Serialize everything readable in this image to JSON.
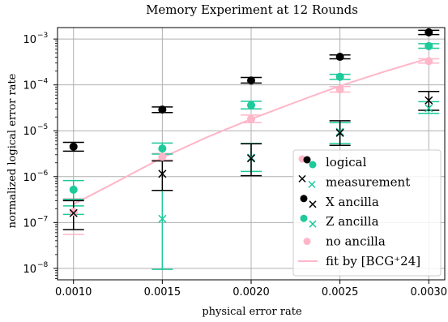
{
  "chart_data": {
    "type": "scatter",
    "title": "Memory Experiment at 12 Rounds",
    "xlabel": "physical error rate",
    "ylabel": "normalized logical error rate",
    "xlim": [
      0.00091,
      0.00309
    ],
    "ylim_log10": [
      -8.25,
      -2.75
    ],
    "yscale": "log",
    "grid": true,
    "legend_position": "lower-right",
    "x_ticks": [
      0.001,
      0.0015,
      0.002,
      0.0025,
      0.003
    ],
    "x_tick_labels": [
      "0.0010",
      "0.0015",
      "0.0020",
      "0.0025",
      "0.0030"
    ],
    "y_ticks_exp": [
      -8,
      -7,
      -6,
      -5,
      -4,
      -3
    ],
    "y_tick_labels": [
      "10",
      "10",
      "10",
      "10",
      "10",
      "10"
    ],
    "y_tick_exponents": [
      "−8",
      "−7",
      "−6",
      "−5",
      "−4",
      "−3"
    ],
    "colors": {
      "X ancilla": "#000000",
      "Z ancilla": "#1ec99a",
      "no ancilla": "#ffb6c8",
      "fit": "#ffb6c8",
      "grid": "#b0b0b0"
    },
    "series": [
      {
        "name": "X ancilla",
        "x": [
          0.001,
          0.0015,
          0.002,
          0.0025,
          0.003
        ],
        "logical": [
          4.5e-06,
          2.9e-05,
          0.000125,
          0.00041,
          0.0014
        ],
        "logical_err": [
          [
            3.6e-06,
            5.6e-06
          ],
          [
            2.5e-05,
            3.3e-05
          ],
          [
            0.00011,
            0.000145
          ],
          [
            0.00037,
            0.00045
          ],
          [
            0.00125,
            0.00155
          ]
        ],
        "measurement": [
          1.6e-07,
          1.15e-06,
          2.5e-06,
          9e-06,
          4.6e-05
        ],
        "measurement_err": [
          [
            7e-08,
            3e-07
          ],
          [
            5e-07,
            2.2e-06
          ],
          [
            1.05e-06,
            5.2e-06
          ],
          [
            4.8e-06,
            1.65e-05
          ],
          [
            2.8e-05,
            7.2e-05
          ]
        ]
      },
      {
        "name": "Z ancilla",
        "x": [
          0.001,
          0.0015,
          0.002,
          0.0025,
          0.003
        ],
        "logical": [
          5.2e-07,
          4.1e-06,
          3.6e-05,
          0.00015,
          0.0007
        ],
        "logical_err": [
          [
            3.2e-07,
            8.2e-07
          ],
          [
            3.1e-06,
            5.4e-06
          ],
          [
            3e-05,
            4.4e-05
          ],
          [
            0.000132,
            0.00017
          ],
          [
            0.00063,
            0.00079
          ]
        ],
        "measurement": [
          null,
          1.2e-07,
          2.6e-06,
          9.5e-06,
          3.1e-05
        ],
        "measurement_err": [
          [
            1.5e-07,
            2.3e-07
          ],
          [
            9.5e-09,
            5e-07
          ],
          [
            1.3e-06,
            5.3e-06
          ],
          [
            5.3e-06,
            1.5e-05
          ],
          [
            2.4e-05,
            4.3e-05
          ]
        ]
      },
      {
        "name": "no ancilla",
        "x": [
          0.001,
          0.0015,
          0.002,
          0.0025,
          0.003
        ],
        "logical": [
          1.7e-07,
          2.7e-06,
          1.8e-05,
          8e-05,
          0.00033
        ],
        "logical_err": [
          [
            5.5e-08,
            3.3e-07
          ],
          [
            2.3e-06,
            3.2e-06
          ],
          [
            1.5e-05,
            2.2e-05
          ],
          [
            7e-05,
            9.2e-05
          ],
          [
            0.0003,
            0.00037
          ]
        ]
      }
    ],
    "fit": {
      "name": "fit by [BCG⁺24]",
      "x": [
        0.001,
        0.00125,
        0.0015,
        0.00175,
        0.002,
        0.00225,
        0.0025,
        0.00275,
        0.003
      ],
      "y": [
        2.5e-07,
        8e-07,
        2.6e-06,
        7.2e-06,
        1.8e-05,
        4.2e-05,
        9.5e-05,
        0.000195,
        0.00038
      ]
    },
    "legend": [
      {
        "label": "logical",
        "kind": "dots"
      },
      {
        "label": "measurement",
        "kind": "crosses"
      },
      {
        "label": "X ancilla",
        "kind": "x-ancilla"
      },
      {
        "label": "Z ancilla",
        "kind": "z-ancilla"
      },
      {
        "label": "no ancilla",
        "kind": "no-ancilla"
      },
      {
        "label": "fit by [BCG⁺24]",
        "kind": "line"
      }
    ]
  }
}
